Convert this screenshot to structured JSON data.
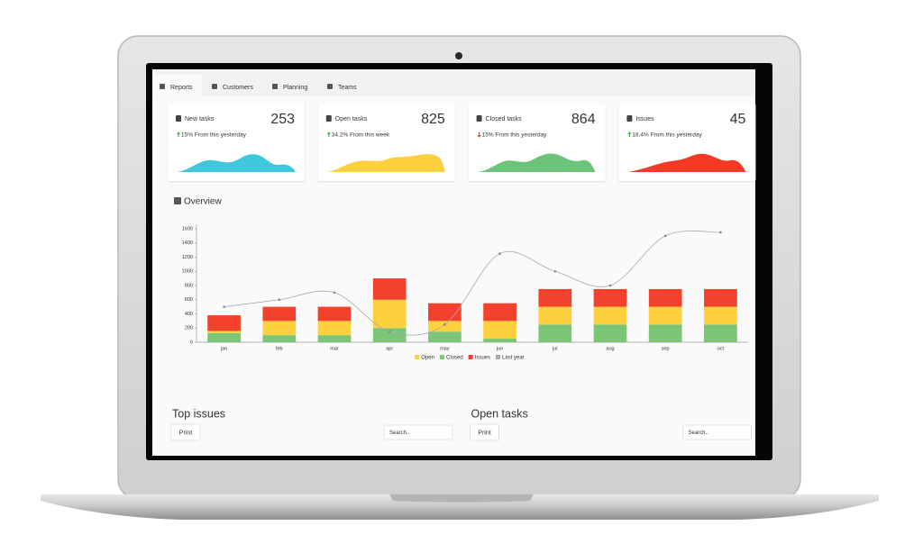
{
  "tabs": [
    "Reports",
    "Customers",
    "Planning",
    "Teams"
  ],
  "cards": [
    {
      "title": "New tasks",
      "value": 253,
      "change": "15% From this yesterday",
      "trend": "up",
      "color": "#3fc8dc"
    },
    {
      "title": "Open tasks",
      "value": 825,
      "change": "34.2% From this week",
      "trend": "up",
      "color": "#fdd13d"
    },
    {
      "title": "Closed tasks",
      "value": 864,
      "change": "15% From this yesterday",
      "trend": "down",
      "color": "#6cc47a"
    },
    {
      "title": "Issues",
      "value": 45,
      "change": "18.4% From this yesterday",
      "trend": "up",
      "color": "#f33a24"
    }
  ],
  "chart_data": {
    "type": "bar",
    "title": "Overview",
    "stacked": true,
    "categories": [
      "jan",
      "feb",
      "mar",
      "apr",
      "may",
      "jun",
      "jul",
      "aug",
      "sep",
      "oct"
    ],
    "series": [
      {
        "name": "Open",
        "color": "#fdd13d",
        "values": [
          30,
          200,
          200,
          400,
          150,
          250,
          250,
          250,
          250,
          250
        ]
      },
      {
        "name": "Closed",
        "color": "#7cc576",
        "values": [
          130,
          100,
          100,
          200,
          150,
          50,
          250,
          250,
          250,
          250
        ]
      },
      {
        "name": "Issues",
        "color": "#f2412d",
        "values": [
          220,
          200,
          200,
          300,
          250,
          250,
          250,
          250,
          250,
          250
        ]
      },
      {
        "name": "Last year",
        "type": "line",
        "color": "#aaaaaa",
        "values": [
          500,
          600,
          700,
          150,
          250,
          1250,
          1000,
          800,
          1500,
          1550
        ]
      }
    ],
    "ylim": [
      0,
      1600
    ],
    "yticks": [
      0,
      200,
      400,
      600,
      800,
      1000,
      1200,
      1400,
      1600
    ],
    "grid": false,
    "legend": "bottom"
  },
  "panels": [
    {
      "title": "Top issues",
      "button": "Print",
      "search_placeholder": "Search.."
    },
    {
      "title": "Open tasks",
      "button": "Print",
      "search_placeholder": "Search.."
    }
  ]
}
